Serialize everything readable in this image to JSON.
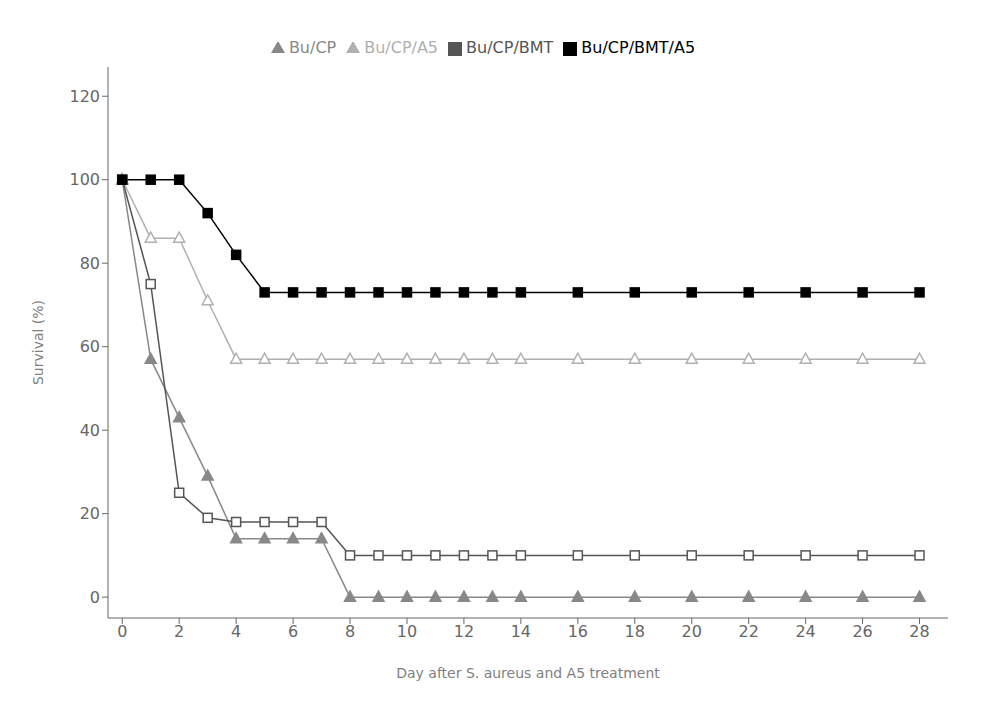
{
  "chart_data": {
    "type": "line",
    "xlabel": "Day after S. aureus and A5 treatment",
    "ylabel": "Survival (%)",
    "x": [
      0,
      1,
      2,
      3,
      4,
      5,
      6,
      7,
      8,
      9,
      10,
      11,
      12,
      13,
      14,
      16,
      18,
      20,
      22,
      24,
      26,
      28
    ],
    "series": [
      {
        "name": "Bu/CP",
        "color": "#888888",
        "marker": "triangle",
        "values": [
          100,
          57,
          43,
          29,
          14,
          14,
          14,
          14,
          0,
          0,
          0,
          0,
          0,
          0,
          0,
          0,
          0,
          0,
          0,
          0,
          0,
          0
        ]
      },
      {
        "name": "Bu/CP/A5",
        "color": "#b0b0b0",
        "marker": "triangle-open",
        "values": [
          100,
          86,
          86,
          71,
          57,
          57,
          57,
          57,
          57,
          57,
          57,
          57,
          57,
          57,
          57,
          57,
          57,
          57,
          57,
          57,
          57,
          57
        ]
      },
      {
        "name": "Bu/CP/BMT",
        "color": "#555555",
        "marker": "square-open",
        "values": [
          100,
          75,
          25,
          19,
          18,
          18,
          18,
          18,
          10,
          10,
          10,
          10,
          10,
          10,
          10,
          10,
          10,
          10,
          10,
          10,
          10,
          10
        ]
      },
      {
        "name": "Bu/CP/BMT/A5",
        "color": "#000000",
        "marker": "square",
        "values": [
          100,
          100,
          100,
          92,
          82,
          73,
          73,
          73,
          73,
          73,
          73,
          73,
          73,
          73,
          73,
          73,
          73,
          73,
          73,
          73,
          73,
          73
        ]
      }
    ],
    "xlim": [
      -0.5,
      29
    ],
    "ylim": [
      -5,
      127
    ],
    "xticks": [
      0,
      2,
      4,
      6,
      8,
      10,
      12,
      14,
      16,
      18,
      20,
      22,
      24,
      26,
      28
    ],
    "yticks": [
      0,
      20,
      40,
      60,
      80,
      100,
      120
    ],
    "grid": false,
    "legend": "top"
  }
}
